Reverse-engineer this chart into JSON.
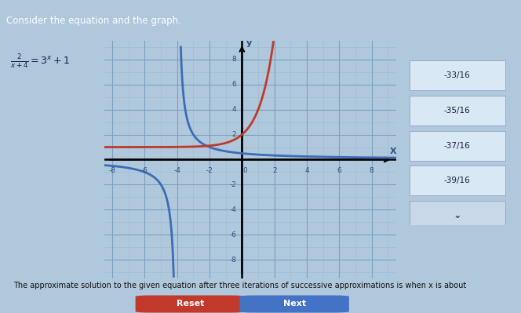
{
  "title": "Consider the equation and the graph.",
  "xlim": [
    -8.5,
    9.5
  ],
  "ylim": [
    -9.5,
    9.5
  ],
  "xticks": [
    -8,
    -6,
    -4,
    -2,
    2,
    4,
    6,
    8
  ],
  "yticks": [
    -8,
    -6,
    -4,
    -2,
    2,
    4,
    6,
    8
  ],
  "curve_blue": "#3B6CB5",
  "curve_red": "#C0392B",
  "grid_minor_color": "#9BB8D4",
  "grid_major_color": "#7AA0C0",
  "axis_color": "#000000",
  "plot_bg": "#C8DAE8",
  "body_bg": "#B0C8DC",
  "header_bg": "#2E4E7E",
  "header_text": "Consider the equation and the graph.",
  "header_text_color": "#FFFFFF",
  "eq_color": "#1A1A4E",
  "answer_options": [
    "-33/16",
    "-35/16",
    "-37/16",
    "-39/16"
  ],
  "dropdown_bg": "#C8D8E8",
  "dropdown_item_bg": "#D8E8F4",
  "dropdown_border": "#8899BB",
  "bottom_text": "The approximate solution to the given equation after three iterations of successive approximations is when x is about",
  "reset_btn_color": "#C0392B",
  "next_btn_color": "#4472C4",
  "reset_btn": "Reset",
  "next_btn": "Next",
  "tick_color": "#2F4F7F",
  "label_color": "#2F4F7F"
}
